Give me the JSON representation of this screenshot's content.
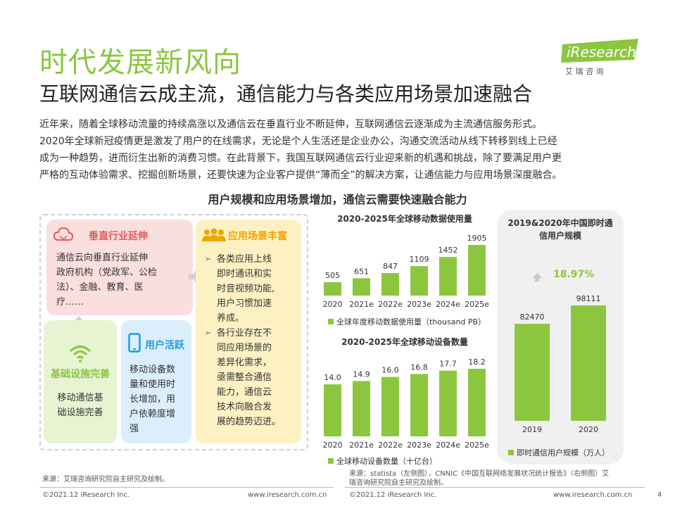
{
  "header": {
    "title": "时代发展新风向",
    "subtitle": "互联网通信云成主流，通信能力与各类应用场景加速融合",
    "logo": {
      "brand": "iResearch",
      "brand_cn": "艾 瑞 咨 询"
    }
  },
  "intro": [
    "近年来，随着全球移动流量的持续高涨以及通信云在垂直行业不断延伸，互联网通信云逐渐成为主流通信服务形式。",
    "2020年全球新冠疫情更是激发了用户的在线需求，无论是个人生活还是企业办公，沟通交流活动从线下转移到线上已经",
    "成为一种趋势，进而衍生出新的消费习惯。在此背景下，我国互联网通信云行业迎来新的机遇和挑战，除了要满足用户更",
    "严格的互动体验需求、挖掘创新场景，还要快速为企业客户提供“薄而全”的解决方案，让通信能力与应用场景深度融合。"
  ],
  "section_title": "用户规模和应用场景增加，通信云需要快速融合能力",
  "diagram": {
    "vertical": {
      "title": "垂直行业延伸",
      "lines": [
        "通信云向垂直行业延伸",
        "政府机构（党政军、公检",
        "法）、金融、教育、医",
        "疗……"
      ]
    },
    "scenario": {
      "title": "应用场景丰富",
      "bullet1": [
        "各类应用上线",
        "即时通讯和实",
        "时音视频功能,",
        "用户习惯加速",
        "养成。"
      ],
      "bullet2": [
        "各行业存在不",
        "同应用场景的",
        "差异化需求，",
        "亟需整合通信",
        "能力，通信云",
        "技术向融合发",
        "展的趋势迈进。"
      ]
    },
    "infra": {
      "title": "基础设施完善",
      "lines": [
        "移动通信基",
        "础设施完善"
      ]
    },
    "user": {
      "title": "用户活跃",
      "lines": [
        "移动设备数",
        "量和使用时",
        "长增加，用",
        "户依赖度增",
        "强"
      ]
    }
  },
  "chart_data": [
    {
      "type": "bar",
      "title": "2020-2025年全球移动数据使用量",
      "categories": [
        "2020",
        "2021e",
        "2022e",
        "2023e",
        "2024e",
        "2025e"
      ],
      "series": [
        {
          "name": "全球年度移动数据使用量（thousand PB）",
          "values": [
            505,
            651,
            847,
            1109,
            1452,
            1905
          ]
        }
      ],
      "labels": [
        "505",
        "651",
        "847",
        "1109",
        "1452",
        "1905"
      ],
      "ylim": [
        0,
        1905
      ],
      "grid": false,
      "legend": "bottom"
    },
    {
      "type": "bar",
      "title": "2020-2025年全球移动设备数量",
      "categories": [
        "2020",
        "2021e",
        "2022e",
        "2023e",
        "2024e",
        "2025e"
      ],
      "series": [
        {
          "name": "全球移动设备数量（十亿台）",
          "values": [
            14.0,
            14.9,
            16.0,
            16.8,
            17.7,
            18.2
          ]
        }
      ],
      "labels": [
        "14.0",
        "14.9",
        "16.0",
        "16.8",
        "17.7",
        "18.2"
      ],
      "ylim": [
        0,
        18.2
      ],
      "grid": false,
      "legend": "bottom"
    },
    {
      "type": "bar",
      "title": "2019&2020年中国即时通信用户规模",
      "categories": [
        "2019",
        "2020"
      ],
      "series": [
        {
          "name": "即时通信用户规模（万人）",
          "values": [
            82470,
            98111
          ]
        }
      ],
      "labels": [
        "82470",
        "98111"
      ],
      "growth": "18.97%",
      "ylim": [
        0,
        98111
      ],
      "grid": false,
      "legend": "bottom"
    }
  ],
  "footer": {
    "source_left": "来源：艾瑞咨询研究院自主研究及绘制。",
    "source_right_1": "来源：statista（左侧图），CNNIC《中国互联网络发展状况统计报告》（右侧图）艾",
    "source_right_2": "瑞咨询研究院自主研究及绘制。",
    "copyright_left": "©2021.12 iResearch Inc.",
    "url_left": "www.iresearch.com.cn",
    "copyright_right": "©2021.12 iResearch Inc.",
    "url_right": "www.iresearch.com.cn",
    "page_number": "4"
  },
  "colors": {
    "accent_green": "#8cc63f",
    "title_green": "#8cc63f",
    "red": "#e05a5a",
    "orange": "#f0a500",
    "blue": "#1e9be0"
  }
}
